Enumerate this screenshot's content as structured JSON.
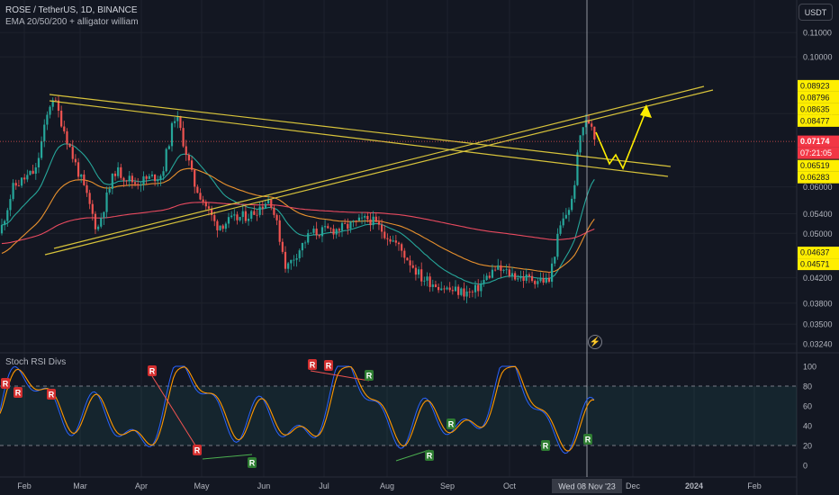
{
  "header": {
    "symbol_line": "ROSE / TetherUS, 1D, BINANCE",
    "indicator_line": "EMA 20/50/200 + alligator william"
  },
  "currency_button": "USDT",
  "lower_indicator_label": "Stoch RSI Divs",
  "colors": {
    "background": "#131722",
    "candle_up": "#26a69a",
    "candle_down": "#ef5350",
    "trendline": "#d7c33b",
    "arrow": "#ffee00",
    "ema20": "#26a69a",
    "ema50": "#e8912e",
    "ema200": "#e84a5f",
    "stoch_k": "#2962ff",
    "stoch_d": "#ff9800"
  },
  "chart_data": [
    {
      "type": "candlestick",
      "scale": "log",
      "ylim": [
        0.0315,
        0.125
      ],
      "x_ticks": [
        "Feb",
        "Mar",
        "Apr",
        "May",
        "Jun",
        "Jul",
        "Aug",
        "Sep",
        "Oct",
        "Dec",
        "2024",
        "Feb"
      ],
      "y_ticks": [
        "0.11000",
        "0.10000",
        "0.08000",
        "0.06000",
        "0.05400",
        "0.05000",
        "0.04200",
        "0.03800",
        "0.03500",
        "0.03240"
      ],
      "y_tick_values": [
        0.11,
        0.1,
        0.08,
        0.06,
        0.054,
        0.05,
        0.042,
        0.038,
        0.035,
        0.0324
      ],
      "price_labels": [
        {
          "text": "0.08923",
          "value": 0.08923,
          "style": "level"
        },
        {
          "text": "0.08796",
          "value": 0.08796,
          "style": "level"
        },
        {
          "text": "0.08635",
          "value": 0.08635,
          "style": "level"
        },
        {
          "text": "0.08477",
          "value": 0.08477,
          "style": "level"
        },
        {
          "text": "0.07174",
          "value": 0.07174,
          "style": "last"
        },
        {
          "text": "07:21:05",
          "value": 0.0698,
          "style": "countdown"
        },
        {
          "text": "0.06519",
          "value": 0.06519,
          "style": "level"
        },
        {
          "text": "0.06283",
          "value": 0.06283,
          "style": "level"
        },
        {
          "text": "0.04637",
          "value": 0.04637,
          "style": "level"
        },
        {
          "text": "0.04571",
          "value": 0.04571,
          "style": "level"
        }
      ],
      "crosshair_date": "Wed 08 Nov '23",
      "last_price": 0.07174
    },
    {
      "type": "line",
      "title": "Stoch RSI Divs",
      "ylim": [
        0,
        100
      ],
      "y_ticks": [
        "100",
        "80",
        "60",
        "40",
        "20",
        "0"
      ],
      "y_tick_values": [
        100,
        80,
        60,
        40,
        20,
        0
      ],
      "band": [
        20,
        80
      ],
      "bear_div_markers": [
        "R",
        "R",
        "R",
        "R",
        "R",
        "R",
        "R"
      ],
      "bull_div_markers": [
        "R",
        "R",
        "R",
        "R",
        "R",
        "R"
      ]
    }
  ]
}
